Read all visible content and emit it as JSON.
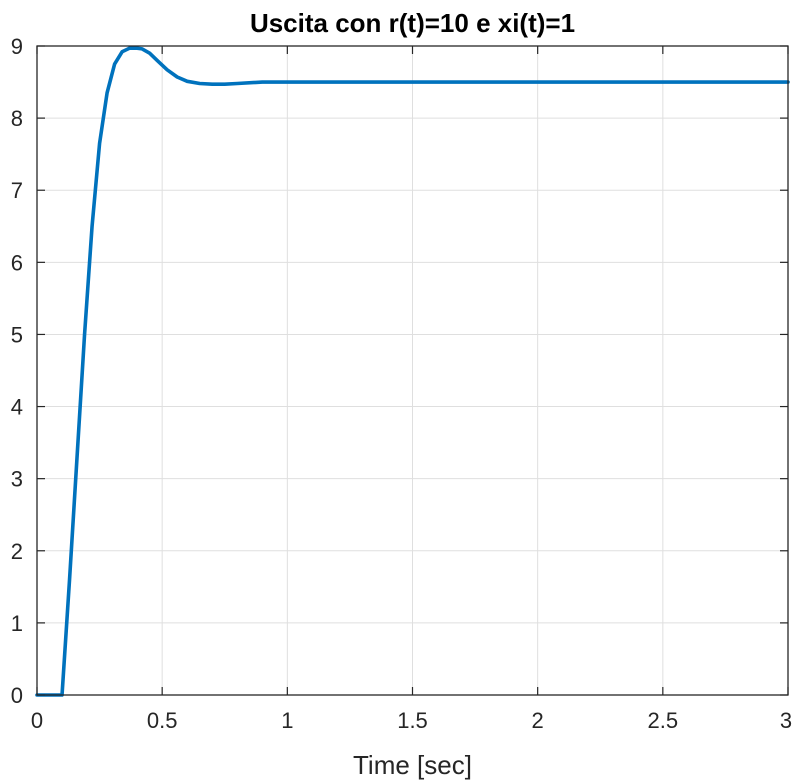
{
  "chart_data": {
    "type": "line",
    "title": "Uscita con r(t)=10 e xi(t)=1",
    "xlabel": "Time [sec]",
    "ylabel": "",
    "xlim": [
      0,
      3
    ],
    "ylim": [
      0,
      9
    ],
    "xticks": [
      0,
      0.5,
      1,
      1.5,
      2,
      2.5,
      3
    ],
    "xtick_labels": [
      "0",
      "0.5",
      "1",
      "1.5",
      "2",
      "2.5",
      "3"
    ],
    "yticks": [
      0,
      1,
      2,
      3,
      4,
      5,
      6,
      7,
      8,
      9
    ],
    "ytick_labels": [
      "0",
      "1",
      "2",
      "3",
      "4",
      "5",
      "6",
      "7",
      "8",
      "9"
    ],
    "grid": true,
    "line_color": "#0072BD",
    "series": [
      {
        "x": [
          0,
          0.1,
          0.13,
          0.16,
          0.19,
          0.22,
          0.25,
          0.28,
          0.31,
          0.34,
          0.37,
          0.4,
          0.42,
          0.45,
          0.48,
          0.52,
          0.56,
          0.6,
          0.65,
          0.7,
          0.75,
          0.8,
          0.9,
          1.0,
          1.2,
          1.5,
          2.0,
          2.5,
          3.0
        ],
        "y": [
          0,
          0,
          1.6,
          3.3,
          5.0,
          6.5,
          7.65,
          8.35,
          8.75,
          8.92,
          8.97,
          8.97,
          8.96,
          8.9,
          8.8,
          8.67,
          8.57,
          8.51,
          8.48,
          8.47,
          8.47,
          8.48,
          8.5,
          8.5,
          8.5,
          8.5,
          8.5,
          8.5,
          8.5
        ]
      }
    ]
  }
}
